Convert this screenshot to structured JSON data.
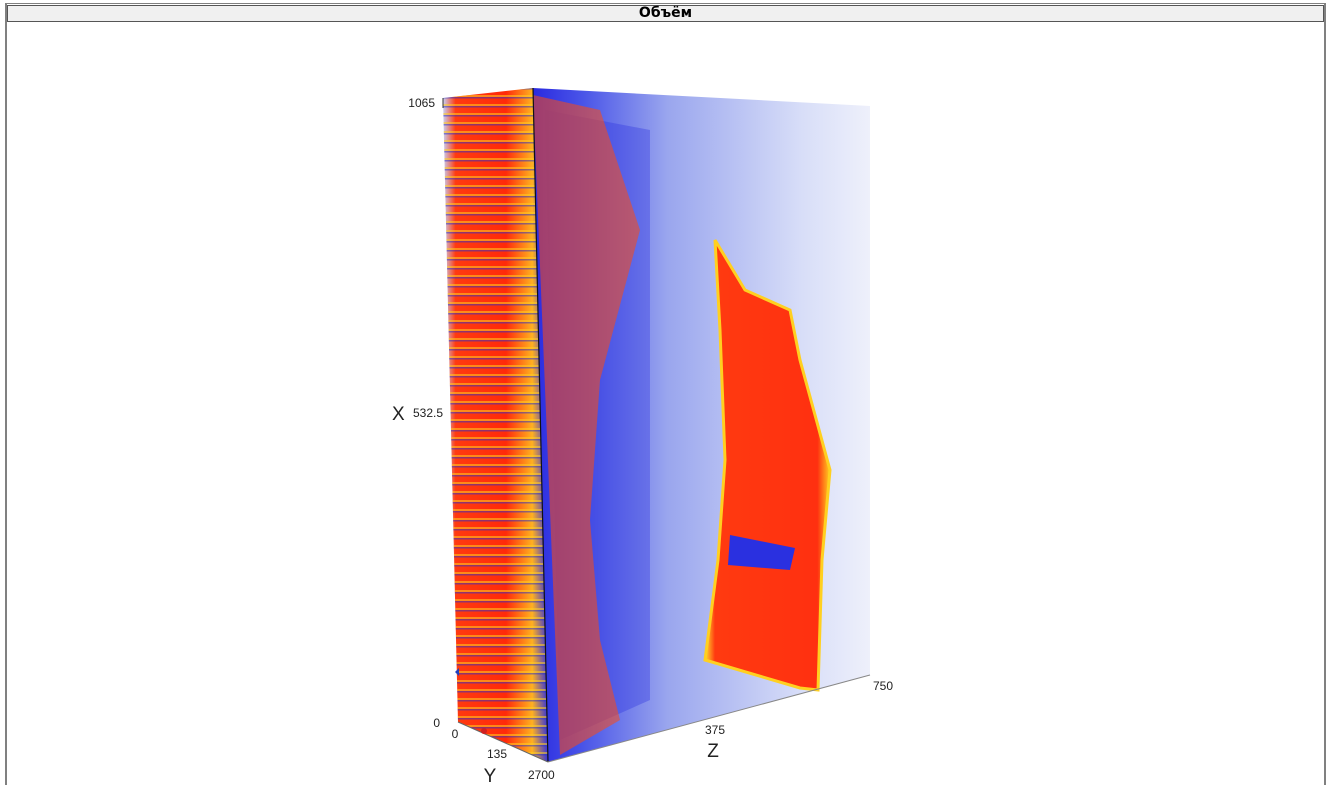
{
  "window": {
    "title": "Объём"
  },
  "axes": {
    "x": {
      "label": "X",
      "ticks": [
        "0",
        "532.5",
        "1065"
      ]
    },
    "y": {
      "label": "Y",
      "ticks": [
        "0",
        "135",
        "270"
      ]
    },
    "z": {
      "label": "Z",
      "ticks": [
        "0",
        "375",
        "750"
      ]
    }
  }
}
